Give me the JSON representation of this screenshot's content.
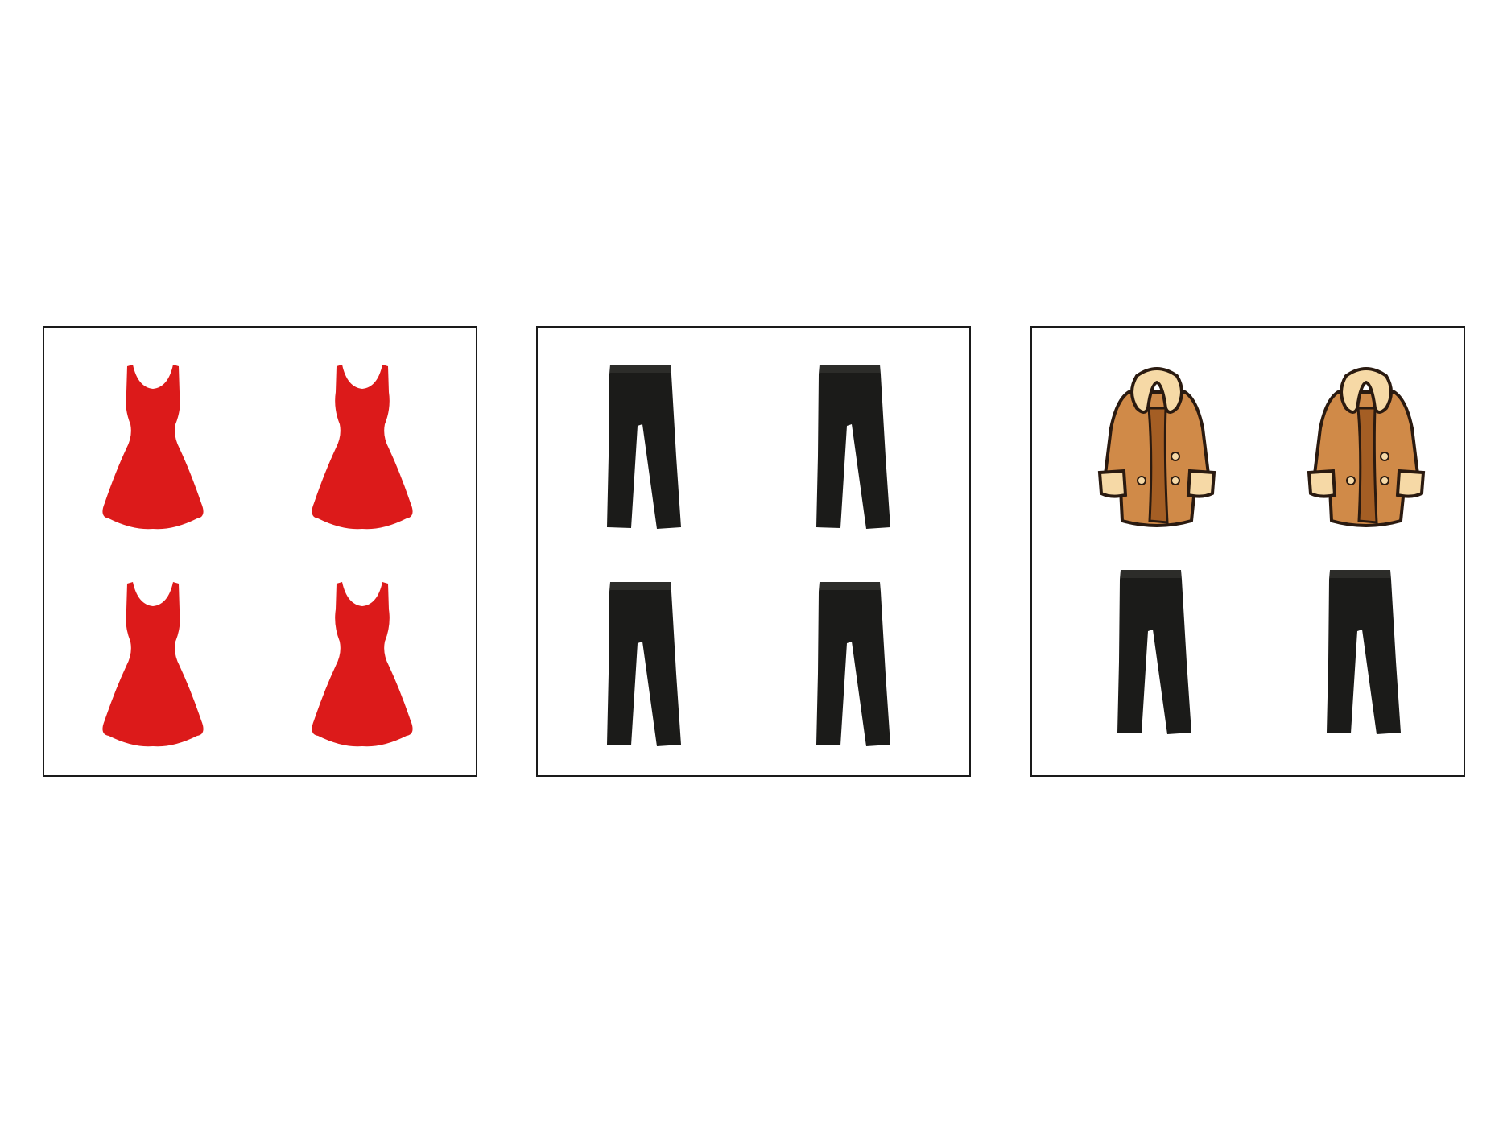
{
  "colors": {
    "background": "#ffffff",
    "panel_border": "#1a1a1a",
    "dress": "#dc1a1a",
    "pants": "#1b1b19",
    "coat_body": "#d08a48",
    "coat_fur": "#f6d9a6",
    "coat_outline": "#2a1a10"
  },
  "panels": [
    {
      "items": [
        "dress-icon",
        "dress-icon",
        "dress-icon",
        "dress-icon"
      ]
    },
    {
      "items": [
        "pants-icon",
        "pants-icon",
        "pants-icon",
        "pants-icon"
      ]
    },
    {
      "items": [
        "coat-icon",
        "coat-icon",
        "pants-icon",
        "pants-icon"
      ]
    }
  ]
}
